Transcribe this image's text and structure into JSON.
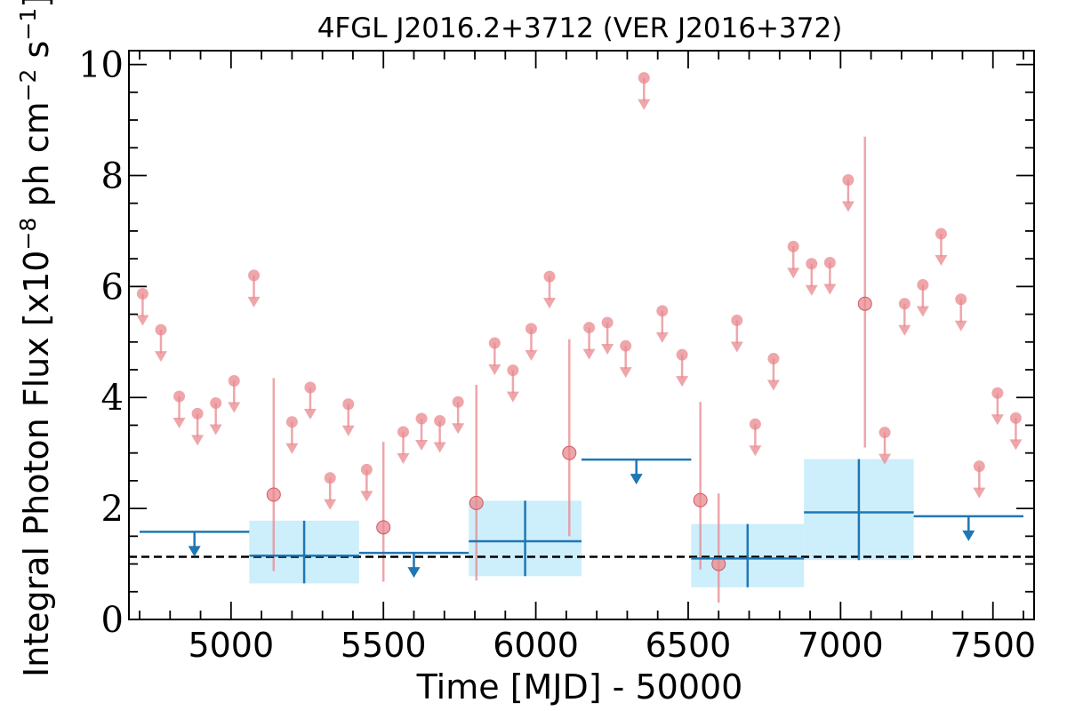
{
  "chart_data": {
    "type": "scatter",
    "title": "4FGL J2016.2+3712 (VER J2016+372)",
    "xlabel": "Time [MJD] - 50000",
    "ylabel_main": "Integral Photon Flux [x10",
    "ylabel_exp1": "−8",
    "ylabel_mid": " ph cm",
    "ylabel_exp2": "−2",
    "ylabel_mid2": " s",
    "ylabel_exp3": "−1",
    "ylabel_end": "]",
    "xlim": [
      4665,
      7635
    ],
    "ylim": [
      0,
      10.25
    ],
    "xticks": [
      {
        "value": 5000,
        "label": "5000"
      },
      {
        "value": 5500,
        "label": "5500"
      },
      {
        "value": 6000,
        "label": "6000"
      },
      {
        "value": 6500,
        "label": "6500"
      },
      {
        "value": 7000,
        "label": "7000"
      },
      {
        "value": 7500,
        "label": "7500"
      }
    ],
    "yticks": [
      {
        "value": 0,
        "label": "0"
      },
      {
        "value": 2,
        "label": "2"
      },
      {
        "value": 4,
        "label": "4"
      },
      {
        "value": 6,
        "label": "6"
      },
      {
        "value": 8,
        "label": "8"
      },
      {
        "value": 10,
        "label": "10"
      }
    ],
    "reference_level": 1.13,
    "colors": {
      "short_bins": "#e8888e",
      "long_bins": "#1f77b4",
      "long_bins_band": "#cdeefb",
      "reference_line": "#000000"
    },
    "short_bins_upper_limits": [
      {
        "x": 4710,
        "y": 5.87
      },
      {
        "x": 4770,
        "y": 5.22
      },
      {
        "x": 4830,
        "y": 4.02
      },
      {
        "x": 4890,
        "y": 3.71
      },
      {
        "x": 4950,
        "y": 3.9
      },
      {
        "x": 5010,
        "y": 4.3
      },
      {
        "x": 5075,
        "y": 6.2
      },
      {
        "x": 5200,
        "y": 3.56
      },
      {
        "x": 5260,
        "y": 4.18
      },
      {
        "x": 5325,
        "y": 2.55
      },
      {
        "x": 5385,
        "y": 3.88
      },
      {
        "x": 5445,
        "y": 2.7
      },
      {
        "x": 5565,
        "y": 3.38
      },
      {
        "x": 5625,
        "y": 3.62
      },
      {
        "x": 5685,
        "y": 3.58
      },
      {
        "x": 5745,
        "y": 3.92
      },
      {
        "x": 5865,
        "y": 4.98
      },
      {
        "x": 5925,
        "y": 4.49
      },
      {
        "x": 5985,
        "y": 5.24
      },
      {
        "x": 6045,
        "y": 6.18
      },
      {
        "x": 6175,
        "y": 5.26
      },
      {
        "x": 6235,
        "y": 5.35
      },
      {
        "x": 6295,
        "y": 4.93
      },
      {
        "x": 6355,
        "y": 9.76
      },
      {
        "x": 6415,
        "y": 5.56
      },
      {
        "x": 6480,
        "y": 4.77
      },
      {
        "x": 6660,
        "y": 5.39
      },
      {
        "x": 6720,
        "y": 3.52
      },
      {
        "x": 6780,
        "y": 4.7
      },
      {
        "x": 6845,
        "y": 6.72
      },
      {
        "x": 6905,
        "y": 6.41
      },
      {
        "x": 6965,
        "y": 6.43
      },
      {
        "x": 7025,
        "y": 7.92
      },
      {
        "x": 7145,
        "y": 3.37
      },
      {
        "x": 7210,
        "y": 5.69
      },
      {
        "x": 7270,
        "y": 6.03
      },
      {
        "x": 7330,
        "y": 6.95
      },
      {
        "x": 7395,
        "y": 5.77
      },
      {
        "x": 7455,
        "y": 2.76
      },
      {
        "x": 7515,
        "y": 4.08
      },
      {
        "x": 7575,
        "y": 3.63
      }
    ],
    "short_bins_detections": [
      {
        "x": 5140,
        "y": 2.25,
        "ylow": 0.87,
        "yhigh": 4.35
      },
      {
        "x": 5500,
        "y": 1.66,
        "ylow": 0.68,
        "yhigh": 3.2
      },
      {
        "x": 5805,
        "y": 2.1,
        "ylow": 0.7,
        "yhigh": 4.23
      },
      {
        "x": 6110,
        "y": 3.0,
        "ylow": 1.5,
        "yhigh": 5.05
      },
      {
        "x": 6540,
        "y": 2.15,
        "ylow": 0.9,
        "yhigh": 3.92
      },
      {
        "x": 6600,
        "y": 1.0,
        "ylow": 0.3,
        "yhigh": 2.27
      },
      {
        "x": 7080,
        "y": 5.69,
        "ylow": 3.1,
        "yhigh": 8.7
      }
    ],
    "long_bins_upper_limits": [
      {
        "x0": 4700,
        "x1": 5060,
        "y": 1.58
      },
      {
        "x0": 5420,
        "x1": 5780,
        "y": 1.2
      },
      {
        "x0": 6150,
        "x1": 6510,
        "y": 2.88
      },
      {
        "x0": 7240,
        "x1": 7600,
        "y": 1.86
      }
    ],
    "long_bins_detections": [
      {
        "x0": 5060,
        "x1": 5420,
        "x": 5240,
        "y": 1.15,
        "ylow": 0.65,
        "yhigh": 1.78
      },
      {
        "x0": 5780,
        "x1": 6150,
        "x": 5965,
        "y": 1.41,
        "ylow": 0.78,
        "yhigh": 2.14
      },
      {
        "x0": 6510,
        "x1": 6880,
        "x": 6695,
        "y": 1.1,
        "ylow": 0.58,
        "yhigh": 1.72
      },
      {
        "x0": 6880,
        "x1": 7240,
        "x": 7060,
        "y": 1.93,
        "ylow": 1.07,
        "yhigh": 2.89
      }
    ]
  }
}
